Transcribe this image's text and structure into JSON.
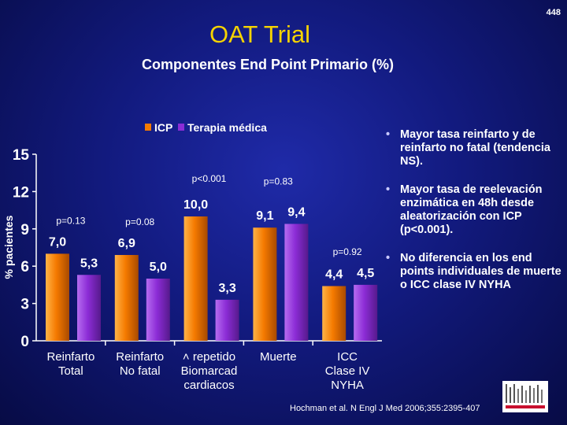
{
  "page_number": "448",
  "title": "OAT Trial",
  "subtitle": "Componentes End Point Primario (%)",
  "bullets": [
    "Mayor tasa reinfarto y de reinfarto no fatal (tendencia NS).",
    "Mayor tasa de reelevación enzimática en 48h desde aleatorización con ICP (p<0.001).",
    "No diferencia en los end points individuales de muerte o ICC clase IV NYHA"
  ],
  "citation": "Hochman et al. N Engl J Med 2006;355:2395-407",
  "chart_data": {
    "type": "bar",
    "ylabel": "% pacientes",
    "ylim": [
      0,
      15
    ],
    "y_ticks": [
      "0",
      "3",
      "6",
      "9",
      "12",
      "15"
    ],
    "categories": [
      [
        "Reinfarto",
        "Total"
      ],
      [
        "Reinfarto",
        "No fatal"
      ],
      [
        "˄ repetido",
        "Biomarcad",
        "cardiacos"
      ],
      [
        "Muerte"
      ],
      [
        "ICC",
        "Clase IV",
        "NYHA"
      ]
    ],
    "series": [
      {
        "name": "ICP",
        "color": "#f57a00",
        "values": [
          7.0,
          6.9,
          10.0,
          9.1,
          4.4
        ],
        "labels": [
          "7,0",
          "6,9",
          "10,0",
          "9,1",
          "4,4"
        ]
      },
      {
        "name": "Terapia médica",
        "color": "#8c2cd6",
        "values": [
          5.3,
          5.0,
          3.3,
          9.4,
          4.5
        ],
        "labels": [
          "5,3",
          "5,0",
          "3,3",
          "9,4",
          "4,5"
        ]
      }
    ],
    "p_values": [
      "p=0.13",
      "p=0.08",
      "p<0.001",
      "p=0.83",
      "p=0.92"
    ],
    "legend_position": "top"
  },
  "colors": {
    "title": "#f5d300",
    "background": "#121a7e"
  }
}
